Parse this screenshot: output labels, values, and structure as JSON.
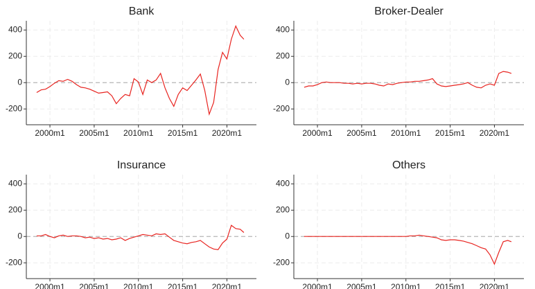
{
  "chart_data": [
    {
      "type": "line",
      "title": "Bank",
      "color": "#e8231f",
      "grid": true,
      "x": [
        "1998m7",
        "1999m1",
        "1999m7",
        "2000m1",
        "2000m7",
        "2001m1",
        "2001m7",
        "2002m1",
        "2002m7",
        "2003m1",
        "2003m7",
        "2004m1",
        "2004m7",
        "2005m1",
        "2005m7",
        "2006m1",
        "2006m7",
        "2007m1",
        "2007m7",
        "2008m1",
        "2008m7",
        "2009m1",
        "2009m7",
        "2010m1",
        "2010m7",
        "2011m1",
        "2011m7",
        "2012m1",
        "2012m7",
        "2013m1",
        "2013m7",
        "2014m1",
        "2014m7",
        "2015m1",
        "2015m7",
        "2016m1",
        "2016m7",
        "2017m1",
        "2017m7",
        "2018m1",
        "2018m7",
        "2019m1",
        "2019m7",
        "2020m1",
        "2020m7",
        "2021m1",
        "2021m7",
        "2021m12"
      ],
      "values": [
        -75,
        -55,
        -50,
        -30,
        -5,
        15,
        10,
        25,
        10,
        -15,
        -35,
        -40,
        -50,
        -65,
        -80,
        -75,
        -70,
        -100,
        -160,
        -120,
        -90,
        -100,
        30,
        5,
        -90,
        20,
        0,
        20,
        70,
        -40,
        -120,
        -180,
        -90,
        -40,
        -60,
        -20,
        20,
        65,
        -60,
        -240,
        -150,
        100,
        230,
        180,
        330,
        430,
        360,
        330
      ],
      "xlim": [
        "1997m5",
        "2023m5"
      ],
      "xticks": [
        "2000m1",
        "2005m1",
        "2010m1",
        "2015m1",
        "2020m1"
      ],
      "ylim": [
        -320,
        470
      ],
      "yticks": [
        -200,
        0,
        200,
        400
      ]
    },
    {
      "type": "line",
      "title": "Broker-Dealer",
      "color": "#e8231f",
      "grid": true,
      "x": [
        "1998m7",
        "1999m1",
        "1999m7",
        "2000m1",
        "2000m7",
        "2001m1",
        "2001m7",
        "2002m1",
        "2002m7",
        "2003m1",
        "2003m7",
        "2004m1",
        "2004m7",
        "2005m1",
        "2005m7",
        "2006m1",
        "2006m7",
        "2007m1",
        "2007m7",
        "2008m1",
        "2008m7",
        "2009m1",
        "2009m7",
        "2010m1",
        "2010m7",
        "2011m1",
        "2011m7",
        "2012m1",
        "2012m7",
        "2013m1",
        "2013m7",
        "2014m1",
        "2014m7",
        "2015m1",
        "2015m7",
        "2016m1",
        "2016m7",
        "2017m1",
        "2017m7",
        "2018m1",
        "2018m7",
        "2019m1",
        "2019m7",
        "2020m1",
        "2020m7",
        "2021m1",
        "2021m7",
        "2021m12"
      ],
      "values": [
        -35,
        -25,
        -25,
        -15,
        0,
        5,
        0,
        0,
        0,
        -5,
        -5,
        -10,
        -5,
        -10,
        -5,
        -5,
        -10,
        -20,
        -25,
        -10,
        -15,
        -5,
        0,
        5,
        5,
        10,
        10,
        15,
        20,
        30,
        -10,
        -25,
        -30,
        -25,
        -20,
        -15,
        -10,
        0,
        -20,
        -35,
        -40,
        -20,
        -10,
        -20,
        70,
        85,
        80,
        70
      ],
      "xlim": [
        "1997m5",
        "2023m5"
      ],
      "xticks": [
        "2000m1",
        "2005m1",
        "2010m1",
        "2015m1",
        "2020m1"
      ],
      "ylim": [
        -320,
        470
      ],
      "yticks": [
        -200,
        0,
        200,
        400
      ]
    },
    {
      "type": "line",
      "title": "Insurance",
      "color": "#e8231f",
      "grid": true,
      "x": [
        "1998m7",
        "1999m1",
        "1999m7",
        "2000m1",
        "2000m7",
        "2001m1",
        "2001m7",
        "2002m1",
        "2002m7",
        "2003m1",
        "2003m7",
        "2004m1",
        "2004m7",
        "2005m1",
        "2005m7",
        "2006m1",
        "2006m7",
        "2007m1",
        "2007m7",
        "2008m1",
        "2008m7",
        "2009m1",
        "2009m7",
        "2010m1",
        "2010m7",
        "2011m1",
        "2011m7",
        "2012m1",
        "2012m7",
        "2013m1",
        "2013m7",
        "2014m1",
        "2014m7",
        "2015m1",
        "2015m7",
        "2016m1",
        "2016m7",
        "2017m1",
        "2017m7",
        "2018m1",
        "2018m7",
        "2019m1",
        "2019m7",
        "2020m1",
        "2020m7",
        "2021m1",
        "2021m7",
        "2021m12"
      ],
      "values": [
        5,
        5,
        15,
        0,
        -10,
        5,
        10,
        0,
        5,
        5,
        0,
        -10,
        -5,
        -15,
        -10,
        -20,
        -15,
        -25,
        -20,
        -10,
        -30,
        -15,
        -5,
        5,
        15,
        10,
        5,
        20,
        15,
        20,
        -5,
        -30,
        -40,
        -50,
        -55,
        -45,
        -40,
        -30,
        -55,
        -80,
        -95,
        -100,
        -50,
        -20,
        85,
        60,
        55,
        30
      ],
      "xlim": [
        "1997m5",
        "2023m5"
      ],
      "xticks": [
        "2000m1",
        "2005m1",
        "2010m1",
        "2015m1",
        "2020m1"
      ],
      "ylim": [
        -320,
        470
      ],
      "yticks": [
        -200,
        0,
        200,
        400
      ]
    },
    {
      "type": "line",
      "title": "Others",
      "color": "#e8231f",
      "grid": true,
      "x": [
        "1998m7",
        "1999m1",
        "1999m7",
        "2000m1",
        "2000m7",
        "2001m1",
        "2001m7",
        "2002m1",
        "2002m7",
        "2003m1",
        "2003m7",
        "2004m1",
        "2004m7",
        "2005m1",
        "2005m7",
        "2006m1",
        "2006m7",
        "2007m1",
        "2007m7",
        "2008m1",
        "2008m7",
        "2009m1",
        "2009m7",
        "2010m1",
        "2010m7",
        "2011m1",
        "2011m7",
        "2012m1",
        "2012m7",
        "2013m1",
        "2013m7",
        "2014m1",
        "2014m7",
        "2015m1",
        "2015m7",
        "2016m1",
        "2016m7",
        "2017m1",
        "2017m7",
        "2018m1",
        "2018m7",
        "2019m1",
        "2019m7",
        "2020m1",
        "2020m7",
        "2021m1",
        "2021m7",
        "2021m12"
      ],
      "values": [
        0,
        0,
        0,
        0,
        0,
        0,
        0,
        0,
        0,
        0,
        0,
        0,
        0,
        0,
        0,
        0,
        0,
        0,
        0,
        0,
        0,
        0,
        0,
        0,
        5,
        5,
        10,
        5,
        0,
        -5,
        -10,
        -25,
        -30,
        -25,
        -25,
        -30,
        -35,
        -45,
        -55,
        -70,
        -85,
        -95,
        -140,
        -210,
        -120,
        -40,
        -30,
        -40
      ],
      "xlim": [
        "1997m5",
        "2023m5"
      ],
      "xticks": [
        "2000m1",
        "2005m1",
        "2010m1",
        "2015m1",
        "2020m1"
      ],
      "ylim": [
        -320,
        470
      ],
      "yticks": [
        -200,
        0,
        200,
        400
      ]
    }
  ]
}
